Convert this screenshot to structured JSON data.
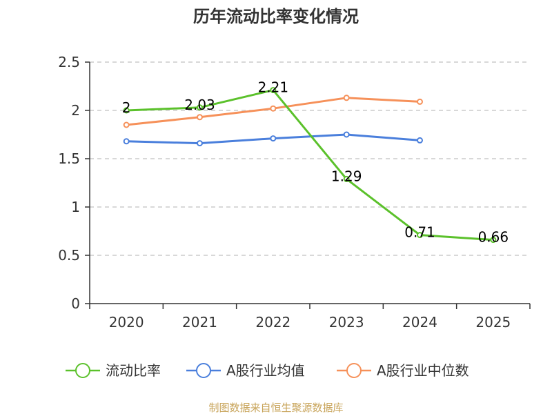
{
  "chart_data": {
    "type": "line",
    "title": "历年流动比率变化情况",
    "categories": [
      "2020",
      "2021",
      "2022",
      "2023",
      "2024",
      "2025"
    ],
    "ylim": [
      0,
      2.5
    ],
    "yticks": [
      0,
      0.5,
      1,
      1.5,
      2,
      2.5
    ],
    "ytick_labels": [
      "0",
      "0.5",
      "1",
      "1.5",
      "2",
      "2.5"
    ],
    "grid": true,
    "legend_position": "bottom",
    "series": [
      {
        "name": "流动比率",
        "color": "#5bc12b",
        "values": [
          2.0,
          2.03,
          2.21,
          1.29,
          0.71,
          0.66
        ],
        "labels": [
          "2",
          "2.03",
          "2.21",
          "1.29",
          "0.71",
          "0.66"
        ]
      },
      {
        "name": "A股行业均值",
        "color": "#4a7fdc",
        "values": [
          1.68,
          1.66,
          1.71,
          1.75,
          1.69,
          null
        ]
      },
      {
        "name": "A股行业中位数",
        "color": "#f6915a",
        "values": [
          1.85,
          1.93,
          2.02,
          2.13,
          2.09,
          null
        ]
      }
    ],
    "source": "制图数据来自恒生聚源数据库"
  }
}
